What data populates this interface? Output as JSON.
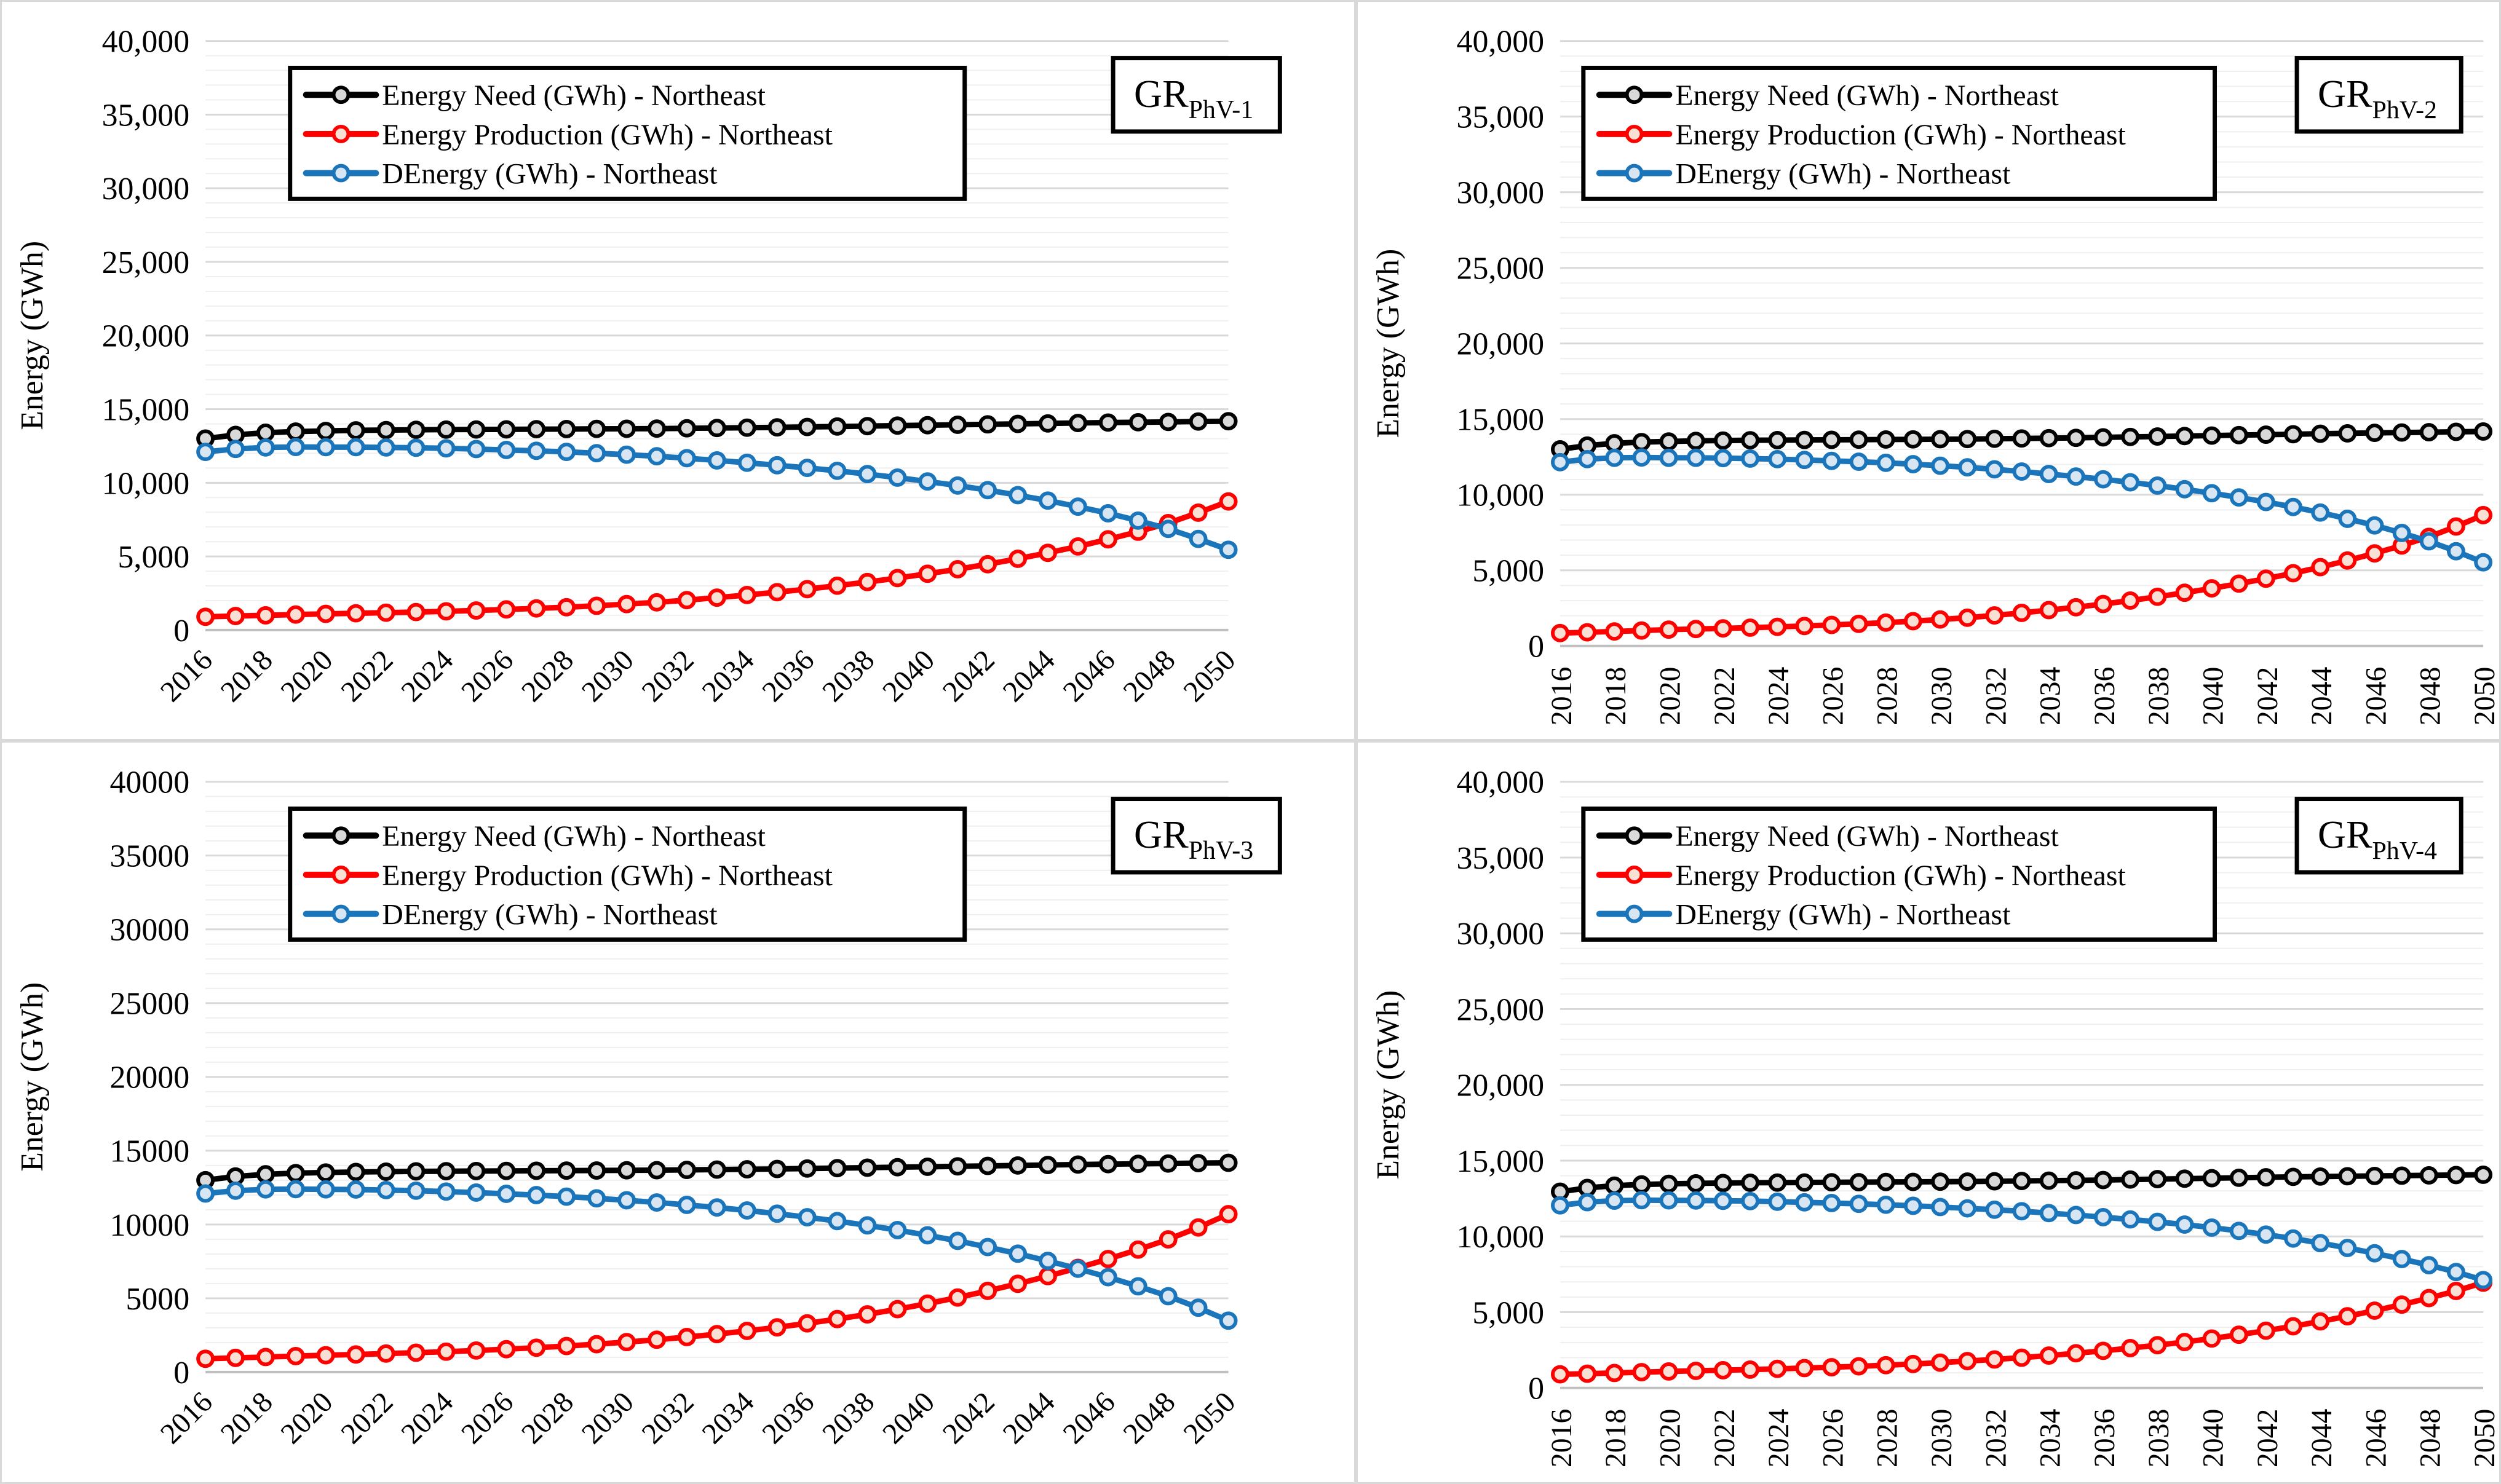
{
  "page": {
    "background": "#FFFFFF",
    "panel_border_color": "#D9D9D9"
  },
  "styles": {
    "grid_minor_color": "#EFEFEF",
    "grid_major_color": "#D9D9D9",
    "axis_line_color": "#BFBFBF",
    "text_color": "#000000",
    "legend_border_color": "#000000",
    "series": {
      "need": {
        "line": "#000000",
        "marker_fill": "#D9D9D9"
      },
      "production": {
        "line": "#FF0000",
        "marker_fill": "#F8E1D4"
      },
      "denergy": {
        "line": "#1B75BB",
        "marker_fill": "#D8E6F4"
      }
    }
  },
  "chart_data": [
    {
      "type": "line",
      "panel_label": {
        "base": "GR",
        "sub": "PhV-1"
      },
      "ylabel": "Energy (GWh)",
      "ylim": [
        0,
        40000
      ],
      "y_major_step": 5000,
      "y_minor_step": 1000,
      "y_tick_format": "comma",
      "x_tick_step": 2,
      "x_label_rotation": 45,
      "grid": "on",
      "legend_position": "top-inside",
      "x": [
        2016,
        2017,
        2018,
        2019,
        2020,
        2021,
        2022,
        2023,
        2024,
        2025,
        2026,
        2027,
        2028,
        2029,
        2030,
        2031,
        2032,
        2033,
        2034,
        2035,
        2036,
        2037,
        2038,
        2039,
        2040,
        2041,
        2042,
        2043,
        2044,
        2045,
        2046,
        2047,
        2048,
        2049,
        2050
      ],
      "series": [
        {
          "key": "need",
          "name": "Energy Need (GWh) -  Northeast",
          "values": [
            13000,
            13250,
            13400,
            13480,
            13520,
            13560,
            13580,
            13600,
            13610,
            13620,
            13630,
            13640,
            13650,
            13660,
            13670,
            13680,
            13700,
            13720,
            13740,
            13760,
            13790,
            13820,
            13850,
            13880,
            13910,
            13940,
            13970,
            14000,
            14030,
            14060,
            14090,
            14110,
            14130,
            14160,
            14180
          ]
        },
        {
          "key": "production",
          "name": "Energy Production (GWh) -  Northeast",
          "values": [
            900,
            950,
            1000,
            1050,
            1100,
            1140,
            1180,
            1220,
            1270,
            1330,
            1400,
            1470,
            1550,
            1650,
            1760,
            1880,
            2030,
            2200,
            2380,
            2570,
            2780,
            3010,
            3260,
            3530,
            3820,
            4130,
            4470,
            4840,
            5240,
            5680,
            6160,
            6680,
            7260,
            7970,
            8730
          ]
        },
        {
          "key": "denergy",
          "name": "DEnergy  (GWh) -  Northeast",
          "values": [
            12100,
            12300,
            12400,
            12430,
            12420,
            12420,
            12400,
            12380,
            12340,
            12290,
            12230,
            12170,
            12100,
            12010,
            11910,
            11800,
            11670,
            11520,
            11360,
            11190,
            11010,
            10810,
            10590,
            10350,
            10090,
            9810,
            9500,
            9160,
            8790,
            8380,
            7930,
            7430,
            6870,
            6190,
            5450
          ]
        }
      ]
    },
    {
      "type": "line",
      "panel_label": {
        "base": "GR",
        "sub": "PhV-2"
      },
      "ylabel": "Energy (GWh)",
      "ylim": [
        0,
        40000
      ],
      "y_major_step": 5000,
      "y_minor_step": 1000,
      "y_tick_format": "comma",
      "x_tick_step": 2,
      "x_label_rotation": 90,
      "grid": "on",
      "legend_position": "top-inside",
      "x": [
        2016,
        2017,
        2018,
        2019,
        2020,
        2021,
        2022,
        2023,
        2024,
        2025,
        2026,
        2027,
        2028,
        2029,
        2030,
        2031,
        2032,
        2033,
        2034,
        2035,
        2036,
        2037,
        2038,
        2039,
        2040,
        2041,
        2042,
        2043,
        2044,
        2045,
        2046,
        2047,
        2048,
        2049,
        2050
      ],
      "series": [
        {
          "key": "need",
          "name": "Energy Need (GWh) -  Northeast",
          "values": [
            13000,
            13250,
            13400,
            13480,
            13520,
            13560,
            13580,
            13600,
            13610,
            13620,
            13630,
            13640,
            13650,
            13660,
            13670,
            13680,
            13700,
            13720,
            13740,
            13760,
            13790,
            13820,
            13850,
            13880,
            13910,
            13940,
            13970,
            14000,
            14030,
            14060,
            14090,
            14110,
            14130,
            14160,
            14180
          ]
        },
        {
          "key": "production",
          "name": "Energy Production (GWh) -  Northeast",
          "values": [
            850,
            900,
            960,
            1020,
            1080,
            1120,
            1160,
            1210,
            1260,
            1320,
            1390,
            1460,
            1540,
            1640,
            1750,
            1870,
            2020,
            2190,
            2370,
            2560,
            2770,
            3000,
            3250,
            3520,
            3810,
            4120,
            4450,
            4810,
            5210,
            5650,
            6120,
            6640,
            7210,
            7900,
            8650
          ]
        },
        {
          "key": "denergy",
          "name": "DEnergy  (GWh) -  Northeast",
          "values": [
            12150,
            12350,
            12440,
            12460,
            12440,
            12440,
            12420,
            12390,
            12350,
            12300,
            12240,
            12180,
            12110,
            12020,
            11920,
            11810,
            11680,
            11530,
            11370,
            11200,
            11020,
            10820,
            10600,
            10360,
            10100,
            9820,
            9520,
            9190,
            8820,
            8410,
            7970,
            7470,
            6920,
            6260,
            5530
          ]
        }
      ]
    },
    {
      "type": "line",
      "panel_label": {
        "base": "GR",
        "sub": "PhV-3"
      },
      "ylabel": "Energy (GWh)",
      "ylim": [
        0,
        40000
      ],
      "y_major_step": 5000,
      "y_minor_step": 1000,
      "y_tick_format": "plain",
      "x_tick_step": 2,
      "x_label_rotation": 45,
      "grid": "on",
      "legend_position": "top-inside",
      "x": [
        2016,
        2017,
        2018,
        2019,
        2020,
        2021,
        2022,
        2023,
        2024,
        2025,
        2026,
        2027,
        2028,
        2029,
        2030,
        2031,
        2032,
        2033,
        2034,
        2035,
        2036,
        2037,
        2038,
        2039,
        2040,
        2041,
        2042,
        2043,
        2044,
        2045,
        2046,
        2047,
        2048,
        2049,
        2050
      ],
      "series": [
        {
          "key": "need",
          "name": "Energy Need (GWh) -  Northeast",
          "values": [
            13000,
            13250,
            13400,
            13480,
            13520,
            13560,
            13580,
            13600,
            13610,
            13620,
            13630,
            13640,
            13650,
            13660,
            13670,
            13680,
            13700,
            13720,
            13740,
            13760,
            13790,
            13820,
            13850,
            13880,
            13910,
            13940,
            13970,
            14000,
            14030,
            14060,
            14090,
            14110,
            14130,
            14160,
            14180
          ]
        },
        {
          "key": "production",
          "name": "Energy Production (GWh) -  Northeast",
          "values": [
            900,
            960,
            1020,
            1080,
            1140,
            1190,
            1250,
            1310,
            1380,
            1460,
            1550,
            1650,
            1760,
            1890,
            2030,
            2190,
            2370,
            2570,
            2790,
            3030,
            3300,
            3590,
            3910,
            4260,
            4640,
            5050,
            5500,
            5980,
            6500,
            7060,
            7660,
            8300,
            8990,
            9800,
            10700
          ]
        },
        {
          "key": "denergy",
          "name": "DEnergy  (GWh) -  Northeast",
          "values": [
            12100,
            12290,
            12380,
            12400,
            12380,
            12370,
            12330,
            12290,
            12230,
            12160,
            12080,
            11990,
            11890,
            11770,
            11640,
            11490,
            11330,
            11150,
            10950,
            10730,
            10490,
            10230,
            9940,
            9620,
            9270,
            8890,
            8470,
            8020,
            7530,
            7000,
            6430,
            5810,
            5140,
            4360,
            3480
          ]
        }
      ]
    },
    {
      "type": "line",
      "panel_label": {
        "base": "GR",
        "sub": "PhV-4"
      },
      "ylabel": "Energy (GWh)",
      "ylim": [
        0,
        40000
      ],
      "y_major_step": 5000,
      "y_minor_step": 1000,
      "y_tick_format": "comma",
      "x_tick_step": 2,
      "x_label_rotation": 90,
      "grid": "on",
      "legend_position": "top-inside",
      "x": [
        2016,
        2017,
        2018,
        2019,
        2020,
        2021,
        2022,
        2023,
        2024,
        2025,
        2026,
        2027,
        2028,
        2029,
        2030,
        2031,
        2032,
        2033,
        2034,
        2035,
        2036,
        2037,
        2038,
        2039,
        2040,
        2041,
        2042,
        2043,
        2044,
        2045,
        2046,
        2047,
        2048,
        2049,
        2050
      ],
      "series": [
        {
          "key": "need",
          "name": "Energy Need (GWh) -  Northeast",
          "values": [
            12950,
            13200,
            13350,
            13430,
            13470,
            13500,
            13520,
            13540,
            13550,
            13560,
            13570,
            13580,
            13590,
            13600,
            13610,
            13620,
            13640,
            13660,
            13680,
            13700,
            13720,
            13750,
            13780,
            13810,
            13840,
            13870,
            13900,
            13930,
            13950,
            13970,
            13990,
            14010,
            14030,
            14050,
            14070
          ]
        },
        {
          "key": "production",
          "name": "Energy Production (GWh) -  Northeast",
          "values": [
            900,
            940,
            990,
            1040,
            1090,
            1130,
            1170,
            1210,
            1260,
            1310,
            1370,
            1430,
            1500,
            1580,
            1670,
            1770,
            1880,
            2000,
            2140,
            2290,
            2450,
            2630,
            2820,
            3030,
            3260,
            3510,
            3780,
            4070,
            4390,
            4730,
            5100,
            5500,
            5930,
            6400,
            6950
          ]
        },
        {
          "key": "denergy",
          "name": "DEnergy  (GWh) -  Northeast",
          "values": [
            12050,
            12260,
            12360,
            12390,
            12380,
            12370,
            12350,
            12330,
            12290,
            12250,
            12200,
            12150,
            12090,
            12020,
            11940,
            11850,
            11760,
            11660,
            11540,
            11410,
            11270,
            11120,
            10960,
            10780,
            10580,
            10360,
            10120,
            9860,
            9560,
            9240,
            8890,
            8510,
            8100,
            7650,
            7120
          ]
        }
      ]
    }
  ]
}
